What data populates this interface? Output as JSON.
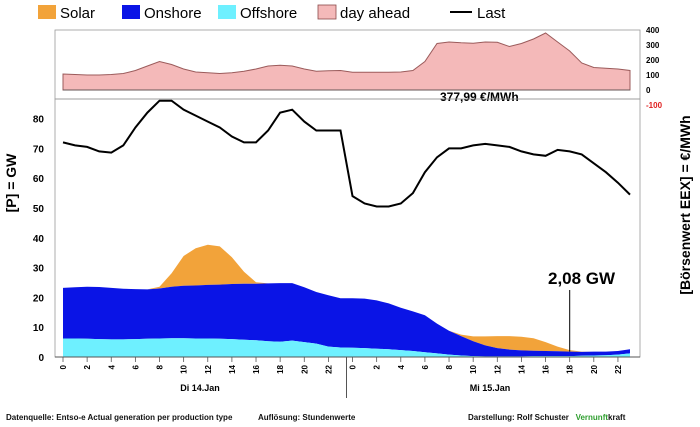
{
  "legend": [
    {
      "label": "Solar",
      "color": "#f2a33a",
      "kind": "swatch"
    },
    {
      "label": "Onshore",
      "color": "#0a14e6",
      "kind": "swatch"
    },
    {
      "label": "Offshore",
      "color": "#6ef0ff",
      "kind": "swatch"
    },
    {
      "label": "day ahead",
      "color": "#f4b9b9",
      "kind": "swatch"
    },
    {
      "label": "Last",
      "color": "#000000",
      "kind": "line"
    }
  ],
  "chart_data": {
    "type": "area",
    "hours": [
      0,
      1,
      2,
      3,
      4,
      5,
      6,
      7,
      8,
      9,
      10,
      11,
      12,
      13,
      14,
      15,
      16,
      17,
      18,
      19,
      20,
      21,
      22,
      23,
      24,
      25,
      26,
      27,
      28,
      29,
      30,
      31,
      32,
      33,
      34,
      35,
      36,
      37,
      38,
      39,
      40,
      41,
      42,
      43,
      44,
      45,
      46,
      47
    ],
    "x_tick_labels": [
      "0",
      "2",
      "4",
      "6",
      "8",
      "10",
      "12",
      "14",
      "16",
      "18",
      "20",
      "22",
      "0",
      "2",
      "4",
      "6",
      "8",
      "10",
      "12",
      "14",
      "16",
      "18",
      "20",
      "22"
    ],
    "day_labels": [
      "Di 14.Jan",
      "Mi 15.Jan"
    ],
    "price_panel": {
      "series_name": "day ahead",
      "ylim": [
        -100,
        400
      ],
      "yticks": [
        -100,
        0,
        100,
        200,
        300,
        400
      ],
      "values": [
        107,
        103,
        100,
        100,
        103,
        110,
        130,
        160,
        190,
        170,
        140,
        120,
        115,
        110,
        115,
        125,
        140,
        160,
        165,
        160,
        140,
        125,
        128,
        130,
        118,
        118,
        118,
        118,
        120,
        130,
        190,
        310,
        320,
        315,
        312,
        320,
        318,
        290,
        310,
        340,
        380,
        320,
        260,
        180,
        150,
        145,
        140,
        130
      ],
      "annotation": "377,99 €/MWh",
      "ylabel": "[Börsenwert EEX] = €/MWh"
    },
    "power_panel": {
      "ylabel": "[P] = GW",
      "ylim": [
        0,
        88
      ],
      "yticks": [
        0,
        10,
        20,
        30,
        40,
        50,
        60,
        70,
        80
      ],
      "series": [
        {
          "name": "Offshore",
          "values": [
            6.2,
            6.2,
            6.1,
            6.0,
            5.9,
            5.9,
            6.0,
            6.1,
            6.2,
            6.3,
            6.3,
            6.2,
            6.2,
            6.1,
            6.0,
            5.8,
            5.6,
            5.3,
            5.1,
            5.5,
            5.0,
            4.5,
            3.5,
            3.2,
            3.1,
            3.0,
            2.8,
            2.6,
            2.3,
            2.0,
            1.6,
            1.2,
            0.8,
            0.5,
            0.3,
            0.2,
            0.2,
            0.2,
            0.2,
            0.3,
            0.3,
            0.3,
            0.3,
            0.4,
            0.5,
            0.6,
            0.8,
            1.2
          ]
        },
        {
          "name": "Onshore",
          "values": [
            17.0,
            17.2,
            17.5,
            17.5,
            17.3,
            17.0,
            16.8,
            16.6,
            16.8,
            17.3,
            17.6,
            17.8,
            18.0,
            18.2,
            18.5,
            18.8,
            19.0,
            19.4,
            19.7,
            19.3,
            18.4,
            17.3,
            17.2,
            16.5,
            16.6,
            16.6,
            16.2,
            15.4,
            14.2,
            13.3,
            12.4,
            10.0,
            8.0,
            6.5,
            5.0,
            3.7,
            2.8,
            2.3,
            2.0,
            1.8,
            1.7,
            1.6,
            1.5,
            1.3,
            1.3,
            1.2,
            1.2,
            1.4
          ]
        },
        {
          "name": "Solar",
          "values": [
            0,
            0,
            0,
            0,
            0,
            0,
            0,
            0,
            0.6,
            4.5,
            10.0,
            12.5,
            13.5,
            12.8,
            9.0,
            4.0,
            0.5,
            0,
            0,
            0,
            0,
            0,
            0,
            0,
            0,
            0,
            0,
            0,
            0,
            0,
            0,
            0,
            0,
            0.5,
            1.6,
            3.0,
            4.0,
            4.5,
            4.6,
            4.2,
            3.0,
            1.6,
            0.5,
            0.1,
            0,
            0,
            0,
            0
          ]
        },
        {
          "name": "Last",
          "values": [
            72,
            71,
            70.5,
            69,
            68.6,
            71,
            77,
            82,
            86,
            86,
            83,
            81,
            79,
            77,
            74,
            72,
            72,
            76,
            82,
            83,
            79,
            76,
            76,
            76,
            54,
            51.5,
            50.5,
            50.5,
            51.5,
            55,
            62,
            67,
            70,
            70,
            71,
            71.5,
            71,
            70.5,
            69,
            68,
            67.5,
            69.5,
            69,
            68,
            65,
            62,
            58.5,
            54.5
          ]
        }
      ],
      "annotation": "2,08 GW"
    }
  },
  "footer": {
    "source": "Datenquelle: Entso-e  Actual generation per production type",
    "resolution": "Auflösung: Stundenwerte",
    "credit": "Darstellung:  Rolf Schuster",
    "brand_a": "Vernunft",
    "brand_b": "kraft"
  }
}
